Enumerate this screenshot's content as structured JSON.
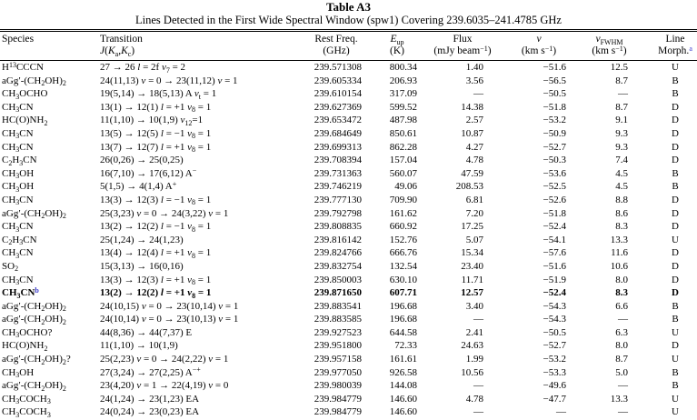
{
  "page": {
    "title": "Table A3",
    "subtitle": "Lines Detected in the First Wide Spectral Window (spw1) Covering 239.6035–241.4785 GHz"
  },
  "colors": {
    "footnote_marker": "#3c3ccd",
    "text": "#000000",
    "background": "#ffffff"
  },
  "columns": [
    {
      "id": "species",
      "line1": "Species",
      "line2": ""
    },
    {
      "id": "transition",
      "line1": "Transition",
      "line2": "*J*(*K*~a~,*K*~c~)"
    },
    {
      "id": "freq",
      "line1": "Rest Freq.",
      "line2": "(GHz)"
    },
    {
      "id": "eup",
      "line1": "*E*~up~",
      "line2": "(K)"
    },
    {
      "id": "flux",
      "line1": "Flux",
      "line2": "(mJy beam^−1^)"
    },
    {
      "id": "v",
      "line1": "*v*",
      "line2": "(km s^−1^)"
    },
    {
      "id": "vfwhm",
      "line1": "*v*~FWHM~",
      "line2": "(km s^−1^)"
    },
    {
      "id": "morph",
      "line1": "Line",
      "line2": "Morph.",
      "note": "a"
    }
  ],
  "rows": [
    {
      "species": "H^13^CCCN",
      "transition": "27 → 26 *l* = 2f *v*~7~ = 2",
      "freq": "239.571308",
      "eup": "800.34",
      "flux": "1.40",
      "v": "−51.6",
      "vfwhm": "12.5",
      "morph": "U"
    },
    {
      "species": "aGg′-(CH~2~OH)~2~",
      "transition": "24(11,13) *v* = 0 → 23(11,12) *v* = 1",
      "freq": "239.605334",
      "eup": "206.93",
      "flux": "3.56",
      "v": "−56.5",
      "vfwhm": "8.7",
      "morph": "B"
    },
    {
      "species": "CH~3~OCHO",
      "transition": "19(5,14) → 18(5,13) A *v*~t~ = 1",
      "freq": "239.610154",
      "eup": "317.09",
      "flux": "—",
      "v": "−50.5",
      "vfwhm": "—",
      "morph": "B"
    },
    {
      "species": "CH~3~CN",
      "transition": "13(1) → 12(1) *l* = +1 *v*~8~ = 1",
      "freq": "239.627369",
      "eup": "599.52",
      "flux": "14.38",
      "v": "−51.8",
      "vfwhm": "8.7",
      "morph": "D"
    },
    {
      "species": "HC(O)NH~2~",
      "transition": "11(1,10) → 10(1,9) *v*~12~=1",
      "freq": "239.653472",
      "eup": "487.98",
      "flux": "2.57",
      "v": "−53.2",
      "vfwhm": "9.1",
      "morph": "D"
    },
    {
      "species": "CH~3~CN",
      "transition": "13(5) → 12(5) *l* = −1 *v*~8~ = 1",
      "freq": "239.684649",
      "eup": "850.61",
      "flux": "10.87",
      "v": "−50.9",
      "vfwhm": "9.3",
      "morph": "D"
    },
    {
      "species": "CH~3~CN",
      "transition": "13(7) → 12(7) *l* = +1 *v*~8~ = 1",
      "freq": "239.699313",
      "eup": "862.28",
      "flux": "4.27",
      "v": "−52.7",
      "vfwhm": "9.3",
      "morph": "D"
    },
    {
      "species": "C~2~H~3~CN",
      "transition": "26(0,26) → 25(0,25)",
      "freq": "239.708394",
      "eup": "157.04",
      "flux": "4.78",
      "v": "−50.3",
      "vfwhm": "7.4",
      "morph": "D"
    },
    {
      "species": "CH~3~OH",
      "transition": "16(7,10) → 17(6,12) A^−^",
      "freq": "239.731363",
      "eup": "560.07",
      "flux": "47.59",
      "v": "−53.6",
      "vfwhm": "4.5",
      "morph": "B"
    },
    {
      "species": "CH~3~OH",
      "transition": "5(1,5) → 4(1,4) A^+^",
      "freq": "239.746219",
      "eup": "49.06",
      "flux": "208.53",
      "v": "−52.5",
      "vfwhm": "4.5",
      "morph": "B"
    },
    {
      "species": "CH~3~CN",
      "transition": "13(3) → 12(3) *l* = −1 *v*~8~ = 1",
      "freq": "239.777130",
      "eup": "709.90",
      "flux": "6.81",
      "v": "−52.6",
      "vfwhm": "8.8",
      "morph": "D"
    },
    {
      "species": "aGg′-(CH~2~OH)~2~",
      "transition": "25(3,23) *v* = 0 → 24(3,22) *v* = 1",
      "freq": "239.792798",
      "eup": "161.62",
      "flux": "7.20",
      "v": "−51.8",
      "vfwhm": "8.6",
      "morph": "D"
    },
    {
      "species": "CH~3~CN",
      "transition": "13(2) → 12(2) *l* = −1 *v*~8~ = 1",
      "freq": "239.808835",
      "eup": "660.92",
      "flux": "17.25",
      "v": "−52.4",
      "vfwhm": "8.3",
      "morph": "D"
    },
    {
      "species": "C~2~H~3~CN",
      "transition": "25(1,24) → 24(1,23)",
      "freq": "239.816142",
      "eup": "152.76",
      "flux": "5.07",
      "v": "−54.1",
      "vfwhm": "13.3",
      "morph": "U"
    },
    {
      "species": "CH~3~CN",
      "transition": "13(4) → 12(4) *l* = +1 *v*~8~ = 1",
      "freq": "239.824766",
      "eup": "666.76",
      "flux": "15.34",
      "v": "−57.6",
      "vfwhm": "11.6",
      "morph": "D"
    },
    {
      "species": "SO~2~",
      "transition": "15(3,13) → 16(0,16)",
      "freq": "239.832754",
      "eup": "132.54",
      "flux": "23.40",
      "v": "−51.6",
      "vfwhm": "10.6",
      "morph": "D"
    },
    {
      "species": "CH~3~CN",
      "transition": "13(3) → 12(3) *l* = +1 *v*~8~ = 1",
      "freq": "239.850003",
      "eup": "630.10",
      "flux": "11.71",
      "v": "−51.9",
      "vfwhm": "8.0",
      "morph": "D"
    },
    {
      "species": "CH~3~CN",
      "transition": "13(2) → 12(2) *l* = +1 *v*~8~ = 1",
      "freq": "239.871650",
      "eup": "607.71",
      "flux": "12.57",
      "v": "−52.4",
      "vfwhm": "8.3",
      "morph": "D",
      "bold": true,
      "note": "b"
    },
    {
      "species": "aGg′-(CH~2~OH)~2~",
      "transition": "24(10,15) *v* = 0 → 23(10,14) *v* = 1",
      "freq": "239.883541",
      "eup": "196.68",
      "flux": "3.40",
      "v": "−54.3",
      "vfwhm": "6.6",
      "morph": "B"
    },
    {
      "species": "aGg′-(CH~2~OH)~2~",
      "transition": "24(10,14) *v* = 0 → 23(10,13) *v* = 1",
      "freq": "239.883585",
      "eup": "196.68",
      "flux": "—",
      "v": "−54.3",
      "vfwhm": "—",
      "morph": "B"
    },
    {
      "species": "CH~3~OCHO?",
      "transition": "44(8,36) → 44(7,37) E",
      "freq": "239.927523",
      "eup": "644.58",
      "flux": "2.41",
      "v": "−50.5",
      "vfwhm": "6.3",
      "morph": "U"
    },
    {
      "species": "HC(O)NH~2~",
      "transition": "11(1,10) → 10(1,9)",
      "freq": "239.951800",
      "eup": "72.33",
      "flux": "24.63",
      "v": "−52.7",
      "vfwhm": "8.0",
      "morph": "D"
    },
    {
      "species": "aGg′-(CH~2~OH)~2~?",
      "transition": "25(2,23) *v* = 0 → 24(2,22) *v* = 1",
      "freq": "239.957158",
      "eup": "161.61",
      "flux": "1.99",
      "v": "−53.2",
      "vfwhm": "8.7",
      "morph": "U"
    },
    {
      "species": "CH~3~OH",
      "transition": "27(3,24) → 27(2,25) A^−+^",
      "freq": "239.977050",
      "eup": "926.58",
      "flux": "10.56",
      "v": "−53.3",
      "vfwhm": "5.0",
      "morph": "B"
    },
    {
      "species": "aGg′-(CH~2~OH)~2~",
      "transition": "23(4,20) *v* = 1 → 22(4,19) *v* = 0",
      "freq": "239.980039",
      "eup": "144.08",
      "flux": "—",
      "v": "−49.6",
      "vfwhm": "—",
      "morph": "B"
    },
    {
      "species": "CH~3~COCH~3~",
      "transition": "24(1,24) → 23(1,23) EA",
      "freq": "239.984779",
      "eup": "146.60",
      "flux": "4.78",
      "v": "−47.7",
      "vfwhm": "13.3",
      "morph": "U"
    },
    {
      "species": "CH~3~COCH~3~",
      "transition": "24(0,24) → 23(0,23) EA",
      "freq": "239.984779",
      "eup": "146.60",
      "flux": "—",
      "v": "—",
      "vfwhm": "—",
      "morph": "U"
    }
  ]
}
